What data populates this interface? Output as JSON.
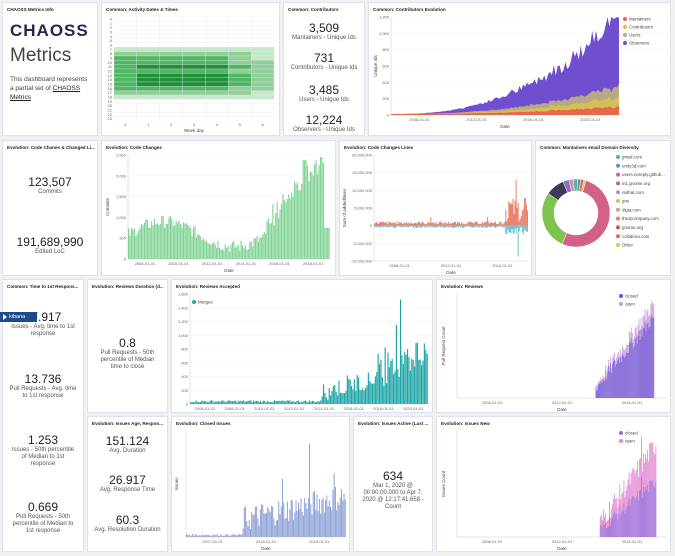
{
  "info": {
    "title": "CHAOSS Metrics Info",
    "logo": "CHAOSS",
    "heading": "Metrics",
    "desc_prefix": "This dashboard represents a partial set of ",
    "desc_link": "CHAOSS Metrics"
  },
  "activity": {
    "title": "Common: Activity Dates & Times",
    "xlabel": "Week day",
    "hours": [
      "0",
      "1",
      "2",
      "3",
      "4",
      "5",
      "6",
      "7",
      "8",
      "9",
      "10",
      "11",
      "12",
      "13",
      "14",
      "15",
      "16",
      "17",
      "18",
      "19",
      "20",
      "21",
      "22",
      "23"
    ],
    "days": [
      "0",
      "1",
      "2",
      "3",
      "4",
      "5",
      "6"
    ],
    "intensity": [
      [
        0,
        0,
        0,
        0,
        0,
        0,
        0
      ],
      [
        0,
        0,
        0,
        0,
        0,
        0,
        0
      ],
      [
        0,
        0,
        0,
        0,
        0,
        0,
        0
      ],
      [
        0,
        0,
        0,
        0,
        0,
        0,
        0
      ],
      [
        0,
        0,
        0,
        0,
        0,
        0,
        0
      ],
      [
        0,
        0,
        0,
        0,
        0,
        0,
        0
      ],
      [
        0,
        0,
        0,
        0,
        0,
        0,
        0
      ],
      [
        1,
        1,
        1,
        1,
        1,
        1,
        1
      ],
      [
        2,
        2,
        2,
        2,
        2,
        2,
        1
      ],
      [
        3,
        3,
        3,
        3,
        3,
        2,
        1
      ],
      [
        3,
        3,
        3,
        3,
        3,
        2,
        2
      ],
      [
        3,
        4,
        4,
        4,
        4,
        3,
        2
      ],
      [
        3,
        3,
        3,
        3,
        3,
        2,
        2
      ],
      [
        3,
        4,
        4,
        4,
        4,
        3,
        2
      ],
      [
        3,
        4,
        4,
        4,
        4,
        3,
        2
      ],
      [
        3,
        4,
        4,
        4,
        4,
        3,
        2
      ],
      [
        3,
        3,
        3,
        3,
        3,
        2,
        2
      ],
      [
        2,
        2,
        2,
        2,
        2,
        2,
        1
      ],
      [
        1,
        1,
        1,
        1,
        1,
        1,
        1
      ],
      [
        0,
        0,
        0,
        0,
        0,
        0,
        0
      ],
      [
        0,
        0,
        0,
        0,
        0,
        0,
        0
      ],
      [
        0,
        0,
        0,
        0,
        0,
        0,
        0
      ],
      [
        0,
        0,
        0,
        0,
        0,
        0,
        0
      ],
      [
        0,
        0,
        0,
        0,
        0,
        0,
        0
      ]
    ]
  },
  "contributors": {
    "title": "Common: Contributors",
    "metrics": [
      {
        "value": "3,509",
        "label": "Mantainers - Unique Ids"
      },
      {
        "value": "731",
        "label": "Contributors - Unique Ids"
      },
      {
        "value": "3,485",
        "label": "Users - Unique Ids"
      },
      {
        "value": "12,224",
        "label": "Observers - Unique Ids"
      }
    ]
  },
  "contrib_evo": {
    "title": "Common: Contributors Evolution",
    "ylabel": "Unique Ids",
    "xlabel": "Date",
    "xticks": [
      "2008-01-01",
      "2012-01-01",
      "2016-01-01",
      "2020-01-01"
    ],
    "yticks": [
      "0",
      "200",
      "400",
      "600",
      "800",
      "1,000",
      "1,200"
    ],
    "legend": [
      {
        "name": "Mantainers",
        "color": "#e7664c"
      },
      {
        "name": "Contributors",
        "color": "#d6bf57"
      },
      {
        "name": "Users",
        "color": "#b9a888"
      },
      {
        "name": "Observers",
        "color": "#6f4fd0"
      }
    ]
  },
  "code_changes_li": {
    "title": "Evolution: Code Chanes & Changed Li...",
    "metrics": [
      {
        "value": "123,507",
        "label": "Commits"
      },
      {
        "value": "191,689,990",
        "label": "Edited LoC"
      }
    ]
  },
  "code_changes": {
    "title": "Evolution: Code Changes",
    "ylabel": "Commits",
    "xlabel": "Date",
    "xticks": [
      "2008-01-01",
      "2010-01-01",
      "2012-01-01",
      "2014-01-01",
      "2016-01-01",
      "2018-01-01"
    ],
    "yticks": [
      "0",
      "500",
      "1,000",
      "1,500",
      "2,000",
      "2,500"
    ],
    "color": "#7fd394"
  },
  "code_lines": {
    "title": "Evolution: Code Changes Lines",
    "ylabel": "Sum of added/lines",
    "xlabel": "Date",
    "xticks": [
      "2008-01-01",
      "2012-01-01",
      "2016-01-01"
    ],
    "yticks": [
      "20,000,000",
      "15,000,000",
      "10,000,000",
      "5,000,000",
      "0",
      "-5,000,000",
      "-10,000,000"
    ]
  },
  "domain_div": {
    "title": "Common: Mantainers email Domain Diversity",
    "legend": [
      {
        "name": "gmail.com",
        "color": "#54b399"
      },
      {
        "name": "unity3d.com",
        "color": "#6092c0"
      },
      {
        "name": "users.noreply.github...",
        "color": "#d36086"
      },
      {
        "name": "in1.gnome.org",
        "color": "#9170b8"
      },
      {
        "name": "redhat.com",
        "color": "#ca8eae"
      },
      {
        "name": "gnu",
        "color": "#d6bf57"
      },
      {
        "name": "digia.com",
        "color": "#b9a888"
      },
      {
        "name": "theqtcompany.com",
        "color": "#da8b45"
      },
      {
        "name": "gnome.org",
        "color": "#aa6556"
      },
      {
        "name": "collabora.com",
        "color": "#e7664c"
      },
      {
        "name": "Other",
        "color": "#e0c84a"
      }
    ],
    "slices": [
      {
        "value": 52,
        "color": "#d36086"
      },
      {
        "value": 28,
        "color": "#7fc24e"
      },
      {
        "value": 9,
        "color": "#3d3a5c"
      },
      {
        "value": 3,
        "color": "#9170b8"
      },
      {
        "value": 2,
        "color": "#ca8eae"
      },
      {
        "value": 2,
        "color": "#54b399"
      },
      {
        "value": 1.5,
        "color": "#6092c0"
      },
      {
        "value": 1.5,
        "color": "#e7664c"
      },
      {
        "value": 1,
        "color": "#d6bf57"
      }
    ]
  },
  "time_first": {
    "title": "Common: Time to 1st Respons...",
    "badge": "kibana",
    "metrics": [
      {
        "value": "17.917",
        "label": "Issues - Avg. time to 1st response"
      },
      {
        "value": "13.736",
        "label": "Pull Requests - Avg. time to 1st response"
      },
      {
        "value": "1.253",
        "label": "Issues - 50th percentile of Median to 1st response"
      },
      {
        "value": "0.669",
        "label": "Pull Requests - 50th percentile of Median to 1st response"
      }
    ]
  },
  "reviews_duration": {
    "title": "Evolution: Reviews Duration (d...",
    "metric": {
      "value": "0.8",
      "label": "Pull Requests - 50th percentile of Median time to close"
    }
  },
  "reviews_accepted": {
    "title": "Evolution: Reviews Accepted",
    "legend": "Merges",
    "color": "#1ea5a5",
    "xticks": [
      "2006-01-01",
      "2008-01-01",
      "2010-01-01",
      "2012-01-01",
      "2014-01-01",
      "2016-01-01",
      "2018-01-01",
      "2020-01-01"
    ],
    "yticks": [
      "0",
      "200",
      "400",
      "600",
      "800",
      "1,000",
      "1,200",
      "1,400",
      "1,600"
    ]
  },
  "reviews": {
    "title": "Evolution: Reviews",
    "ylabel": "Pull Request Count",
    "xlabel": "Date",
    "xticks": [
      "2008-01-01",
      "2012-01-01",
      "2016-01-01"
    ],
    "legend": [
      {
        "name": "closed",
        "color": "#6f4fd0"
      },
      {
        "name": "open",
        "color": "#c89ad8"
      }
    ]
  },
  "issues_age": {
    "title": "Evolution: Issues Age, Respon...",
    "metrics": [
      {
        "value": "151.124",
        "label": "Avg. Duration"
      },
      {
        "value": "26.917",
        "label": "Avg. Response Time"
      },
      {
        "value": "60.3",
        "label": "Avg. Resolution Duration"
      }
    ]
  },
  "closed_issues": {
    "title": "Evolution: Closed Issues",
    "ylabel": "Issues",
    "xlabel": "Date",
    "color": "#8da1d8",
    "xticks": [
      "2017-01-01",
      "2018-01-01",
      "2019-01-01"
    ]
  },
  "issues_active": {
    "title": "Evolution: Issues Active (Last ...",
    "metric": {
      "value": "634",
      "label": "Mar 1, 2020 @ 00:00:00.000 to Apr 7, 2020 @ 12:17:41.658 - Count"
    }
  },
  "issues_new": {
    "title": "Evolution: Issues New",
    "ylabel": "Issues Count",
    "xlabel": "Date",
    "xticks": [
      "2008-01-01",
      "2012-01-01",
      "2016-01-01"
    ],
    "legend": [
      {
        "name": "closed",
        "color": "#9b66d6"
      },
      {
        "name": "open",
        "color": "#e28ad2"
      }
    ]
  }
}
